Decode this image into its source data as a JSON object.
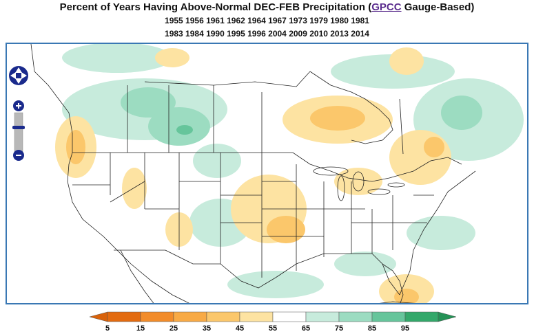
{
  "title": {
    "prefix": "Percent of Years Having Above-Normal DEC-FEB Precipitation (",
    "link": "GPCC",
    "suffix": " Gauge-Based)"
  },
  "years_line1": "1955 1956 1961 1962 1964 1967 1973 1979 1980 1981",
  "years_line2": "1983 1984 1990 1995 1996 2004 2009 2010 2013 2014",
  "colors": {
    "frame": "#3a78b4",
    "control": "#1a2a8c",
    "border_lines": "#222222"
  },
  "legend": {
    "ticks": [
      "5",
      "15",
      "25",
      "35",
      "45",
      "55",
      "65",
      "75",
      "85",
      "95"
    ],
    "bins": [
      {
        "color": "#e36b10"
      },
      {
        "color": "#f28c2a"
      },
      {
        "color": "#f8aa45"
      },
      {
        "color": "#fbc76b"
      },
      {
        "color": "#fde3a2"
      },
      {
        "color": "#ffffff"
      },
      {
        "color": "#c7ebdc"
      },
      {
        "color": "#9cdcc1"
      },
      {
        "color": "#66c59b"
      },
      {
        "color": "#33a86a"
      }
    ],
    "low_arrow_color": "#d9620a",
    "high_arrow_color": "#249256"
  },
  "map_controls": [
    "pan-control",
    "zoom-in",
    "zoom-slider",
    "zoom-out"
  ]
}
